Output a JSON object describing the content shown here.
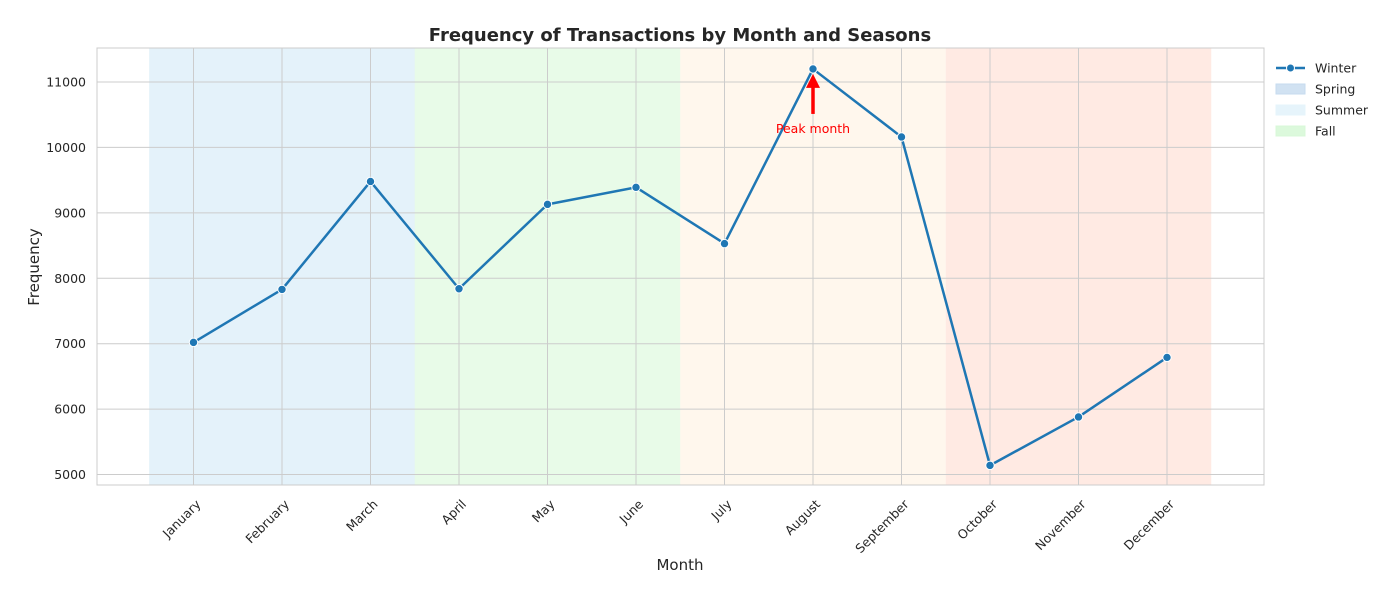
{
  "chart_data": {
    "type": "line",
    "title": "Frequency of Transactions by Month and Seasons",
    "xlabel": "Month",
    "ylabel": "Frequency",
    "categories": [
      "January",
      "February",
      "March",
      "April",
      "May",
      "June",
      "July",
      "August",
      "September",
      "October",
      "November",
      "December"
    ],
    "series": [
      {
        "name": "Winter",
        "values": [
          7020,
          7830,
          9480,
          7840,
          9130,
          9390,
          8530,
          11200,
          10160,
          5140,
          5880,
          6790
        ],
        "color": "#1f77b4"
      }
    ],
    "ylim": [
      4840,
      11520
    ],
    "yticks": [
      5000,
      6000,
      7000,
      8000,
      9000,
      10000,
      11000
    ],
    "grid": true,
    "legend_position": "outside-top-right",
    "seasons": [
      {
        "name": "Spring",
        "start": 0,
        "end": 3,
        "fill": "#c6dbef",
        "opacity": 0.5,
        "in_legend": true
      },
      {
        "name": "Summer",
        "start": 0,
        "end": 3,
        "fill": "#e6f4fb",
        "opacity": 0.7,
        "in_legend": true
      },
      {
        "name": "Fall",
        "start": 3,
        "end": 6,
        "fill": "#d8f8d8",
        "opacity": 0.6,
        "in_legend": true
      },
      {
        "name": "",
        "start": 6,
        "end": 9,
        "fill": "#fff0dc",
        "opacity": 0.5,
        "in_legend": false
      },
      {
        "name": "",
        "start": 9,
        "end": 12,
        "fill": "#ffd6c8",
        "opacity": 0.5,
        "in_legend": false
      }
    ],
    "annotation": {
      "text": "Peak month",
      "category_index": 7,
      "color": "#ff0000"
    }
  }
}
